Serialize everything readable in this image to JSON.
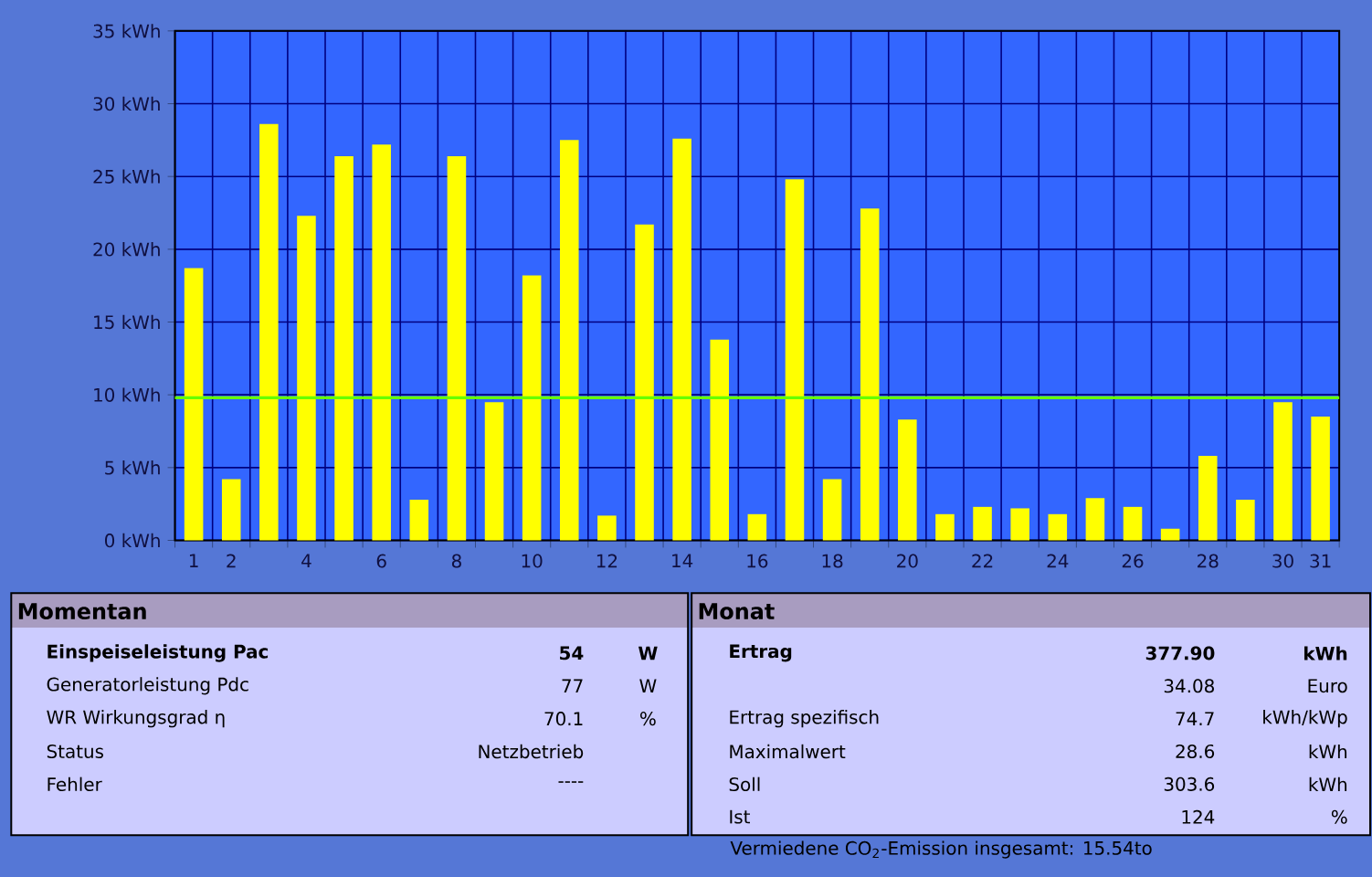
{
  "chart_data": [
    {
      "type": "bar",
      "categories": [
        "1",
        "2",
        null,
        "4",
        null,
        "6",
        null,
        "8",
        null,
        "10",
        null,
        "12",
        null,
        "14",
        null,
        "16",
        null,
        "18",
        null,
        "20",
        null,
        "22",
        null,
        "24",
        null,
        "26",
        null,
        "28",
        null,
        "30",
        "31"
      ],
      "values": [
        18.7,
        4.2,
        28.6,
        22.3,
        26.4,
        27.2,
        2.8,
        26.4,
        9.5,
        18.2,
        27.5,
        1.7,
        21.7,
        27.6,
        13.8,
        1.8,
        24.8,
        4.2,
        22.8,
        8.3,
        1.8,
        2.3,
        2.2,
        1.8,
        2.9,
        2.3,
        0.8,
        5.8,
        2.8,
        9.5,
        8.5
      ],
      "color": "#ffff00",
      "ylim": [
        0,
        35
      ],
      "yticks": [
        {
          "value": 0,
          "label": "0 kWh"
        },
        {
          "value": 5,
          "label": "5 kWh"
        },
        {
          "value": 10,
          "label": "10 kWh"
        },
        {
          "value": 15,
          "label": "15 kWh"
        },
        {
          "value": 20,
          "label": "20 kWh"
        },
        {
          "value": 25,
          "label": "25 kWh"
        },
        {
          "value": 30,
          "label": "30 kWh"
        },
        {
          "value": 35,
          "label": "35 kWh"
        }
      ],
      "grid": true,
      "ref_lines": [
        {
          "axis": "y",
          "value": 9.8,
          "color": "#66ff00"
        }
      ]
    },
    {
      "type": "other",
      "title": "Momentan",
      "annotations": [
        "Einspeiseleistung Pac",
        "54",
        "W",
        "Generatorleistung Pdc",
        "77",
        "W",
        "WR Wirkungsgrad η",
        "70.1",
        "%",
        "Status",
        "Netzbetrieb",
        null,
        "Fehler",
        "----",
        null
      ]
    },
    {
      "type": "other",
      "title": "Monat",
      "annotations": [
        "Ertrag",
        "377.90",
        "kWh",
        null,
        "34.08",
        "Euro",
        "Ertrag spezifisch",
        "74.7",
        "kWh/kWp",
        "Maximalwert",
        "28.6",
        "kWh",
        "Soll",
        "303.6",
        "kWh",
        "Ist",
        "124",
        "%",
        "Vermiedene CO$_{2}$-Emission insgesamt: 15.54to"
      ]
    }
  ]
}
